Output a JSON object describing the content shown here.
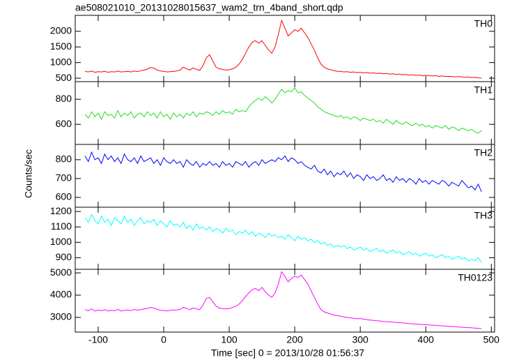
{
  "figure": {
    "title": "ae508021010_20131028015637_wam2_trn_4band_short.qdp",
    "xlabel": "Time [sec] 0 = 2013/10/28 01:56:37",
    "ylabel": "Counts/sec",
    "xlim": [
      -135,
      505
    ],
    "xticks": [
      -100,
      0,
      100,
      200,
      300,
      400,
      500
    ],
    "x": [
      -120,
      -115,
      -110,
      -105,
      -100,
      -95,
      -90,
      -85,
      -80,
      -75,
      -70,
      -65,
      -60,
      -55,
      -50,
      -45,
      -40,
      -35,
      -30,
      -25,
      -20,
      -15,
      -10,
      -5,
      0,
      5,
      10,
      15,
      20,
      25,
      30,
      35,
      40,
      45,
      50,
      55,
      60,
      65,
      70,
      75,
      80,
      85,
      90,
      95,
      100,
      105,
      110,
      115,
      120,
      125,
      130,
      135,
      140,
      145,
      150,
      155,
      160,
      165,
      170,
      175,
      180,
      185,
      190,
      195,
      200,
      205,
      210,
      215,
      220,
      225,
      230,
      235,
      240,
      245,
      250,
      255,
      260,
      265,
      270,
      275,
      280,
      285,
      290,
      295,
      300,
      305,
      310,
      315,
      320,
      325,
      330,
      335,
      340,
      345,
      350,
      355,
      360,
      365,
      370,
      375,
      380,
      385,
      390,
      395,
      400,
      405,
      410,
      415,
      420,
      425,
      430,
      435,
      440,
      445,
      450,
      455,
      460,
      465,
      470,
      475,
      480,
      485
    ]
  },
  "chart_data": [
    {
      "type": "line",
      "ylim": [
        390,
        2510
      ],
      "yticks": [
        500,
        1000,
        1500,
        2000
      ],
      "series": [
        {
          "name": "TH0",
          "color": "#ff0000",
          "values": [
            720,
            700,
            730,
            690,
            710,
            700,
            720,
            690,
            710,
            700,
            730,
            700,
            710,
            720,
            700,
            730,
            710,
            740,
            760,
            790,
            840,
            820,
            760,
            730,
            720,
            700,
            710,
            720,
            730,
            760,
            850,
            800,
            760,
            830,
            780,
            750,
            900,
            1150,
            1250,
            1050,
            850,
            800,
            780,
            760,
            770,
            800,
            850,
            950,
            1100,
            1300,
            1500,
            1650,
            1700,
            1620,
            1700,
            1550,
            1400,
            1300,
            1500,
            1900,
            2350,
            2100,
            1850,
            1950,
            2050,
            2000,
            2100,
            1950,
            1800,
            1600,
            1400,
            1150,
            950,
            850,
            800,
            770,
            740,
            720,
            720,
            700,
            710,
            690,
            700,
            680,
            690,
            670,
            680,
            660,
            670,
            650,
            660,
            640,
            650,
            630,
            640,
            620,
            630,
            610,
            620,
            600,
            610,
            590,
            600,
            580,
            590,
            580,
            570,
            580,
            560,
            570,
            550,
            560,
            550,
            540,
            550,
            540,
            530,
            540,
            520,
            530,
            510,
            500
          ]
        }
      ]
    },
    {
      "type": "line",
      "ylim": [
        440,
        940
      ],
      "yticks": [
        600,
        800
      ],
      "series": [
        {
          "name": "TH1",
          "color": "#22dd22",
          "values": [
            680,
            650,
            700,
            660,
            690,
            640,
            700,
            670,
            680,
            650,
            710,
            660,
            690,
            670,
            700,
            650,
            680,
            690,
            660,
            700,
            670,
            690,
            650,
            700,
            660,
            680,
            640,
            690,
            660,
            680,
            650,
            690,
            670,
            700,
            660,
            690,
            680,
            700,
            690,
            670,
            700,
            680,
            710,
            690,
            700,
            680,
            720,
            700,
            710,
            700,
            740,
            770,
            790,
            810,
            790,
            820,
            800,
            770,
            800,
            840,
            880,
            850,
            870,
            860,
            890,
            850,
            860,
            830,
            810,
            790,
            770,
            740,
            720,
            700,
            690,
            680,
            670,
            660,
            670,
            650,
            660,
            640,
            660,
            650,
            630,
            650,
            640,
            630,
            640,
            620,
            630,
            610,
            640,
            620,
            600,
            630,
            610,
            600,
            620,
            600,
            590,
            610,
            590,
            600,
            580,
            590,
            570,
            590,
            580,
            570,
            590,
            560,
            580,
            570,
            550,
            570,
            560,
            550,
            560,
            540,
            530,
            550
          ]
        }
      ]
    },
    {
      "type": "line",
      "ylim": [
        548,
        881
      ],
      "yticks": [
        600,
        700,
        800
      ],
      "series": [
        {
          "name": "TH2",
          "color": "#0000ff",
          "values": [
            820,
            790,
            840,
            800,
            810,
            780,
            830,
            800,
            820,
            790,
            810,
            780,
            830,
            800,
            790,
            810,
            780,
            820,
            790,
            800,
            810,
            780,
            800,
            770,
            810,
            790,
            780,
            800,
            780,
            790,
            760,
            800,
            780,
            770,
            790,
            760,
            780,
            770,
            790,
            770,
            780,
            760,
            790,
            770,
            780,
            760,
            790,
            780,
            770,
            790,
            760,
            780,
            790,
            770,
            800,
            780,
            790,
            800,
            790,
            810,
            800,
            820,
            790,
            810,
            800,
            780,
            790,
            770,
            760,
            750,
            770,
            740,
            730,
            750,
            720,
            740,
            710,
            730,
            720,
            740,
            710,
            730,
            700,
            720,
            710,
            690,
            720,
            700,
            710,
            690,
            700,
            720,
            690,
            700,
            680,
            710,
            690,
            700,
            680,
            700,
            690,
            670,
            700,
            680,
            690,
            670,
            690,
            680,
            670,
            690,
            680,
            660,
            680,
            670,
            660,
            690,
            670,
            650,
            660,
            640,
            670,
            630
          ]
        }
      ]
    },
    {
      "type": "line",
      "ylim": [
        825,
        1228
      ],
      "yticks": [
        900,
        1000,
        1100,
        1200
      ],
      "series": [
        {
          "name": "TH3",
          "color": "#00ffff",
          "values": [
            1160,
            1130,
            1180,
            1140,
            1120,
            1170,
            1130,
            1150,
            1110,
            1160,
            1140,
            1120,
            1170,
            1130,
            1150,
            1110,
            1140,
            1160,
            1120,
            1140,
            1130,
            1150,
            1110,
            1140,
            1120,
            1100,
            1140,
            1110,
            1120,
            1100,
            1130,
            1090,
            1110,
            1080,
            1120,
            1090,
            1100,
            1080,
            1100,
            1070,
            1090,
            1080,
            1060,
            1090,
            1070,
            1080,
            1050,
            1070,
            1060,
            1080,
            1050,
            1070,
            1040,
            1060,
            1050,
            1030,
            1060,
            1040,
            1050,
            1030,
            1040,
            1020,
            1050,
            1030,
            1010,
            1040,
            1020,
            1030,
            1010,
            1020,
            1000,
            1010,
            990,
            1000,
            980,
            990,
            970,
            980,
            970,
            980,
            960,
            970,
            950,
            960,
            970,
            950,
            960,
            940,
            950,
            960,
            940,
            950,
            930,
            940,
            950,
            930,
            940,
            920,
            930,
            940,
            920,
            930,
            910,
            920,
            930,
            910,
            920,
            900,
            910,
            920,
            900,
            910,
            890,
            900,
            910,
            890,
            900,
            880,
            890,
            880,
            900,
            870
          ]
        }
      ]
    },
    {
      "type": "line",
      "ylim": [
        2340,
        5160
      ],
      "yticks": [
        3000,
        4000,
        5000
      ],
      "series": [
        {
          "name": "TH0123",
          "color": "#ff00ff",
          "values": [
            3350,
            3300,
            3380,
            3280,
            3330,
            3300,
            3350,
            3290,
            3320,
            3300,
            3360,
            3290,
            3310,
            3340,
            3300,
            3360,
            3320,
            3350,
            3380,
            3400,
            3450,
            3420,
            3360,
            3320,
            3310,
            3290,
            3320,
            3330,
            3330,
            3360,
            3450,
            3400,
            3350,
            3420,
            3380,
            3350,
            3550,
            3850,
            3900,
            3700,
            3500,
            3420,
            3400,
            3380,
            3400,
            3450,
            3500,
            3600,
            3750,
            3950,
            4100,
            4250,
            4300,
            4200,
            4350,
            4150,
            4000,
            3900,
            4100,
            4500,
            5050,
            4850,
            4600,
            4750,
            4850,
            4800,
            4900,
            4700,
            4500,
            4200,
            3900,
            3600,
            3350,
            3250,
            3200,
            3150,
            3100,
            3080,
            3050,
            3020,
            3000,
            2980,
            2960,
            2940,
            2950,
            2920,
            2900,
            2880,
            2870,
            2850,
            2840,
            2820,
            2810,
            2800,
            2790,
            2770,
            2760,
            2750,
            2740,
            2720,
            2710,
            2700,
            2690,
            2680,
            2670,
            2660,
            2650,
            2640,
            2630,
            2620,
            2610,
            2600,
            2590,
            2580,
            2570,
            2560,
            2550,
            2540,
            2530,
            2520,
            2510,
            2500
          ]
        }
      ]
    }
  ]
}
